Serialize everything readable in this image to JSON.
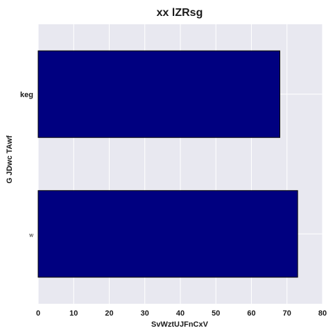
{
  "chart_data": {
    "type": "bar",
    "orientation": "horizontal",
    "title": "xx lZRsg",
    "xlabel": "SvWztUJFnCxV",
    "ylabel": "G JDwc TAwf",
    "categories": [
      "keg",
      "w"
    ],
    "values": [
      68,
      73
    ],
    "xlim": [
      0,
      80
    ],
    "xticks": [
      0,
      10,
      20,
      30,
      40,
      50,
      60,
      70,
      80
    ],
    "grid": true,
    "legend": "none",
    "colors": {
      "bar": "#000080",
      "bar_edge": "#000000",
      "plot_background": "#e8e8f0",
      "grid": "#ffffff"
    }
  }
}
